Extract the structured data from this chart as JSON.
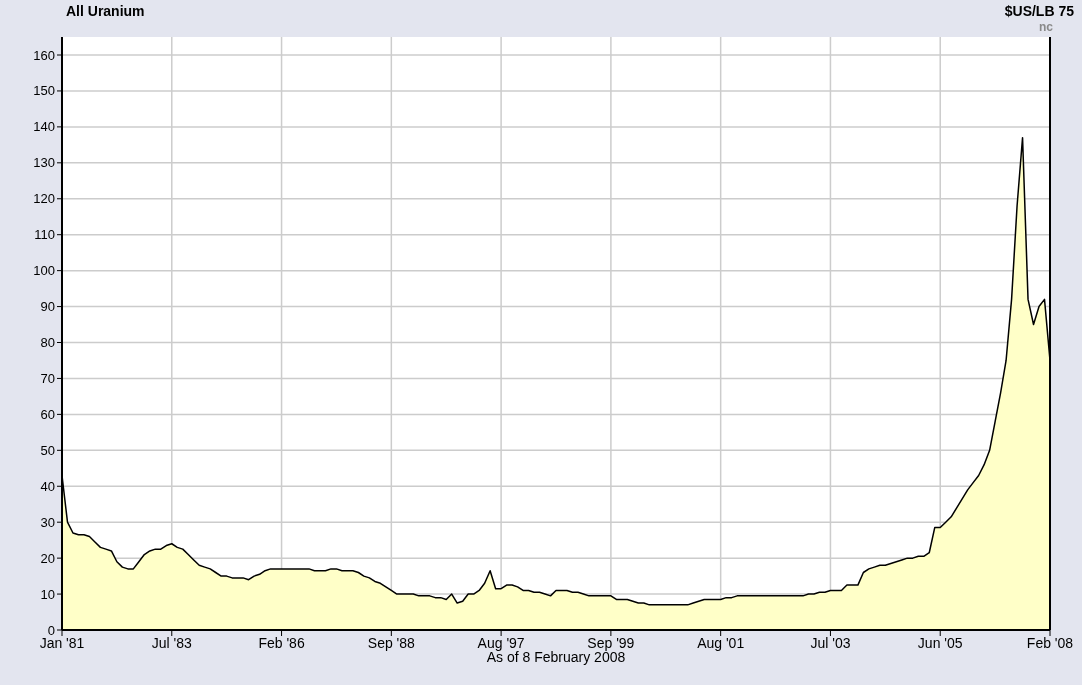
{
  "chart_data": {
    "type": "area",
    "title": "All Uranium",
    "xlabel": "As of 8 February 2008",
    "annotations": [
      "$US/LB 75",
      "nc"
    ],
    "categories": [
      "Jan '81",
      null,
      null,
      null,
      null,
      null,
      null,
      null,
      null,
      null,
      null,
      null,
      null,
      null,
      null,
      null,
      null,
      null,
      null,
      null,
      "Jul '83",
      null,
      null,
      null,
      null,
      null,
      null,
      null,
      null,
      null,
      null,
      null,
      null,
      null,
      null,
      null,
      null,
      null,
      null,
      null,
      "Feb '86",
      null,
      null,
      null,
      null,
      null,
      null,
      null,
      null,
      null,
      null,
      null,
      null,
      null,
      null,
      null,
      null,
      null,
      null,
      null,
      "Sep '88",
      null,
      null,
      null,
      null,
      null,
      null,
      null,
      null,
      null,
      null,
      null,
      null,
      null,
      null,
      null,
      null,
      null,
      null,
      null,
      "Aug '97",
      null,
      null,
      null,
      null,
      null,
      null,
      null,
      null,
      null,
      null,
      null,
      null,
      null,
      null,
      null,
      null,
      null,
      null,
      null,
      "Sep '99",
      null,
      null,
      null,
      null,
      null,
      null,
      null,
      null,
      null,
      null,
      null,
      null,
      null,
      null,
      null,
      null,
      null,
      null,
      null,
      "Aug '01",
      null,
      null,
      null,
      null,
      null,
      null,
      null,
      null,
      null,
      null,
      null,
      null,
      null,
      null,
      null,
      null,
      null,
      null,
      null,
      "Jul '03",
      null,
      null,
      null,
      null,
      null,
      null,
      null,
      null,
      null,
      null,
      null,
      null,
      null,
      null,
      null,
      null,
      null,
      null,
      null,
      "Jun '05",
      null,
      null,
      null,
      null,
      null,
      null,
      null,
      null,
      null,
      null,
      null,
      null,
      null,
      null,
      null,
      null,
      null,
      null,
      null,
      "Feb '08"
    ],
    "series": [
      {
        "color": "#ffffc8",
        "values": [
          43,
          30,
          27,
          26.5,
          26.5,
          26,
          24.5,
          23,
          22.5,
          22,
          19,
          17.5,
          17,
          17,
          19,
          21,
          22,
          22.5,
          22.5,
          23.5,
          24,
          23,
          22.5,
          21,
          19.5,
          18,
          17.5,
          17,
          16,
          15,
          15,
          14.5,
          14.5,
          14.5,
          14,
          15,
          15.5,
          16.5,
          17,
          17,
          17,
          17,
          17,
          17,
          17,
          17,
          16.5,
          16.5,
          16.5,
          17,
          17,
          16.5,
          16.5,
          16.5,
          16,
          15,
          14.5,
          13.5,
          13,
          12,
          11,
          10,
          10,
          10,
          10,
          9.5,
          9.5,
          9.5,
          9,
          9,
          8.5,
          10,
          7.5,
          8,
          10,
          10,
          11,
          13,
          16.5,
          11.5,
          11.5,
          12.5,
          12.5,
          12,
          11,
          11,
          10.5,
          10.5,
          10,
          9.5,
          11,
          11,
          11,
          10.5,
          10.5,
          10,
          9.5,
          9.5,
          9.5,
          9.5,
          9.5,
          8.5,
          8.5,
          8.5,
          8,
          7.5,
          7.5,
          7,
          7,
          7,
          7,
          7,
          7,
          7,
          7,
          7.5,
          8,
          8.5,
          8.5,
          8.5,
          8.5,
          9,
          9,
          9.5,
          9.5,
          9.5,
          9.5,
          9.5,
          9.5,
          9.5,
          9.5,
          9.5,
          9.5,
          9.5,
          9.5,
          9.5,
          10,
          10,
          10.5,
          10.5,
          11,
          11,
          11,
          12.5,
          12.5,
          12.5,
          16,
          17,
          17.5,
          18,
          18,
          18.5,
          19,
          19.5,
          20,
          20,
          20.5,
          20.5,
          21.5,
          28.5,
          28.5,
          30,
          31.5,
          34,
          36.5,
          39,
          41,
          43,
          46,
          50,
          58,
          66,
          75,
          92,
          118,
          137,
          92,
          85,
          90,
          92,
          75
        ]
      }
    ],
    "ylim": [
      0,
      160
    ],
    "yticks": [
      0,
      10,
      20,
      30,
      40,
      50,
      60,
      70,
      80,
      90,
      100,
      110,
      120,
      130,
      140,
      150,
      160
    ],
    "grid": true
  }
}
